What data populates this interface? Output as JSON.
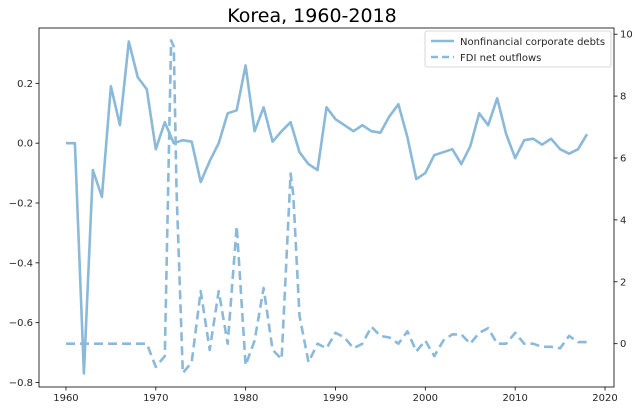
{
  "chart_data": {
    "type": "line",
    "title": "Korea, 1960-2018",
    "xlabel": "",
    "ylabel_left": "",
    "ylabel_right": "",
    "xlim": [
      1957.0,
      2021.0
    ],
    "ylim_left": [
      -0.815,
      0.385
    ],
    "ylim_right": [
      -1.4,
      10.2
    ],
    "x_ticks": [
      1960,
      1970,
      1980,
      1990,
      2000,
      2010,
      2020
    ],
    "y_left_ticks": [
      -0.8,
      -0.6,
      -0.4,
      -0.2,
      0.0,
      0.2
    ],
    "y_left_tick_labels": [
      "−0.8",
      "−0.6",
      "−0.4",
      "−0.2",
      "0.0",
      "0.2"
    ],
    "y_right_ticks": [
      0,
      2,
      4,
      6,
      8,
      10
    ],
    "grid": false,
    "legend_position": "top-right",
    "color": "#8bb9d9",
    "series": [
      {
        "name": "Nonfinancial corporate debts",
        "axis": "left",
        "style": "solid",
        "x": [
          1960,
          1961,
          1962,
          1963,
          1964,
          1965,
          1966,
          1967,
          1968,
          1969,
          1970,
          1971,
          1972,
          1973,
          1974,
          1975,
          1976,
          1977,
          1978,
          1979,
          1980,
          1981,
          1982,
          1983,
          1984,
          1985,
          1986,
          1987,
          1988,
          1989,
          1990,
          1991,
          1992,
          1993,
          1994,
          1995,
          1996,
          1997,
          1998,
          1999,
          2000,
          2001,
          2002,
          2003,
          2004,
          2005,
          2006,
          2007,
          2008,
          2009,
          2010,
          2011,
          2012,
          2013,
          2014,
          2015,
          2016,
          2017,
          2018
        ],
        "values": [
          0.0,
          0.0,
          -0.77,
          -0.09,
          -0.18,
          0.19,
          0.06,
          0.34,
          0.22,
          0.18,
          -0.02,
          0.07,
          0.0,
          0.01,
          0.005,
          -0.13,
          -0.06,
          0.0,
          0.1,
          0.11,
          0.26,
          0.04,
          0.12,
          0.005,
          0.04,
          0.07,
          -0.03,
          -0.07,
          -0.09,
          0.12,
          0.08,
          0.06,
          0.04,
          0.06,
          0.04,
          0.035,
          0.09,
          0.13,
          0.02,
          -0.12,
          -0.1,
          -0.04,
          -0.03,
          -0.02,
          -0.07,
          -0.01,
          0.1,
          0.06,
          0.15,
          0.03,
          -0.05,
          0.01,
          0.015,
          -0.005,
          0.015,
          -0.02,
          -0.035,
          -0.02,
          0.03
        ]
      },
      {
        "name": "FDI net outflows",
        "axis": "right",
        "style": "dashed",
        "x": [
          1960,
          1961,
          1962,
          1963,
          1964,
          1965,
          1966,
          1967,
          1968,
          1969,
          1970,
          1971,
          1971.7,
          1972,
          1972.3,
          1973,
          1974,
          1975,
          1976,
          1977,
          1978,
          1979,
          1980,
          1981,
          1982,
          1983,
          1984,
          1985,
          1985.3,
          1986,
          1987,
          1988,
          1989,
          1990,
          1991,
          1992,
          1993,
          1994,
          1995,
          1996,
          1997,
          1998,
          1999,
          2000,
          2001,
          2002,
          2003,
          2004,
          2005,
          2006,
          2007,
          2008,
          2009,
          2010,
          2011,
          2012,
          2013,
          2014,
          2015,
          2016,
          2017,
          2018
        ],
        "values": [
          0.0,
          0.0,
          0.0,
          0.0,
          0.0,
          0.0,
          0.0,
          0.0,
          0.0,
          0.0,
          -0.75,
          -0.4,
          9.8,
          9.6,
          5.0,
          -0.95,
          -0.6,
          1.7,
          -0.2,
          1.7,
          0.0,
          3.8,
          -0.7,
          0.1,
          1.8,
          -0.2,
          -0.5,
          5.5,
          4.8,
          0.9,
          -0.6,
          0.0,
          -0.15,
          0.35,
          0.2,
          -0.15,
          0.0,
          0.55,
          0.25,
          0.2,
          0.0,
          0.4,
          -0.25,
          0.1,
          -0.4,
          0.1,
          0.3,
          0.3,
          0.0,
          0.35,
          0.5,
          0.0,
          0.0,
          0.35,
          0.0,
          0.0,
          -0.1,
          -0.1,
          -0.15,
          0.25,
          0.05,
          0.05
        ]
      }
    ]
  }
}
